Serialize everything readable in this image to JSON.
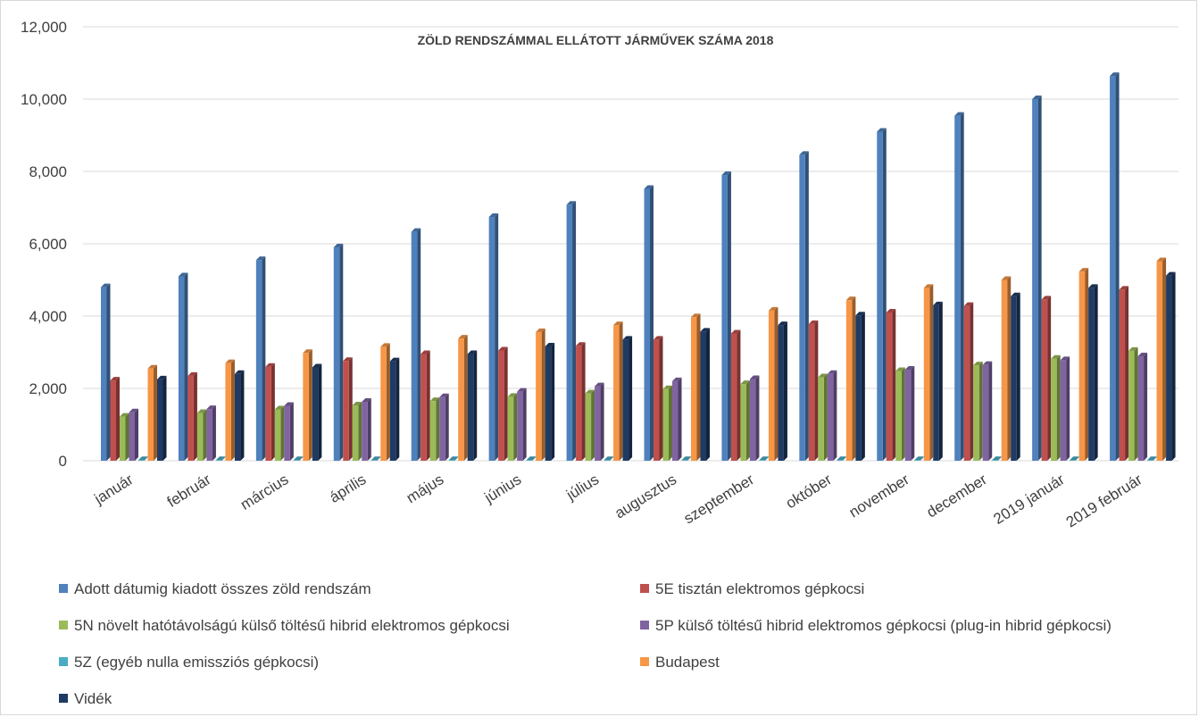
{
  "chart_data": {
    "type": "bar",
    "title": "ZÖLD RENDSZÁMMAL ELLÁTOTT JÁRMŰVEK SZÁMA 2018",
    "xlabel": "",
    "ylabel": "",
    "ylim": [
      0,
      12000
    ],
    "yticks": [
      "0",
      "2,000",
      "4,000",
      "6,000",
      "8,000",
      "10,000",
      "12,000"
    ],
    "ytick_values": [
      0,
      2000,
      4000,
      6000,
      8000,
      10000,
      12000
    ],
    "grid": true,
    "legend_position": "bottom",
    "categories": [
      "január",
      "február",
      "március",
      "április",
      "május",
      "június",
      "július",
      "augusztus",
      "szeptember",
      "október",
      "november",
      "december",
      "2019 január",
      "2019 február"
    ],
    "series": [
      {
        "name": "Adott dátumig kiadott összes zöld rendszám",
        "color": "#4F81BD",
        "values": [
          4800,
          5100,
          5550,
          5900,
          6330,
          6740,
          7080,
          7520,
          7900,
          8460,
          9100,
          9540,
          10000,
          10640
        ]
      },
      {
        "name": "5E tisztán elektromos gépkocsi",
        "color": "#C0504D",
        "values": [
          2220,
          2350,
          2600,
          2760,
          2950,
          3050,
          3180,
          3350,
          3520,
          3780,
          4100,
          4280,
          4460,
          4730
        ]
      },
      {
        "name": "5N növelt hatótávolságú külső töltésű hibrid elektromos gépkocsi",
        "color": "#9BBB59",
        "values": [
          1220,
          1320,
          1420,
          1530,
          1650,
          1770,
          1860,
          1980,
          2120,
          2310,
          2480,
          2640,
          2820,
          3040
        ]
      },
      {
        "name": "5P külső töltésű hibrid elektromos gépkocsi (plug-in hibrid gépkocsi)",
        "color": "#8064A2",
        "values": [
          1340,
          1430,
          1520,
          1630,
          1760,
          1910,
          2060,
          2200,
          2260,
          2400,
          2520,
          2650,
          2780,
          2890
        ]
      },
      {
        "name": "5Z (egyéb nulla emissziós gépkocsi)",
        "color": "#4BACC6",
        "values": [
          20,
          20,
          20,
          20,
          20,
          20,
          20,
          20,
          20,
          20,
          20,
          20,
          20,
          20
        ]
      },
      {
        "name": "Budapest",
        "color": "#F79646",
        "values": [
          2550,
          2700,
          2980,
          3150,
          3380,
          3560,
          3750,
          3970,
          4150,
          4440,
          4780,
          5000,
          5230,
          5520
        ]
      },
      {
        "name": "Vidék",
        "color": "#1F3B64",
        "values": [
          2250,
          2400,
          2580,
          2750,
          2950,
          3160,
          3350,
          3570,
          3750,
          4020,
          4300,
          4550,
          4780,
          5120
        ]
      }
    ]
  }
}
